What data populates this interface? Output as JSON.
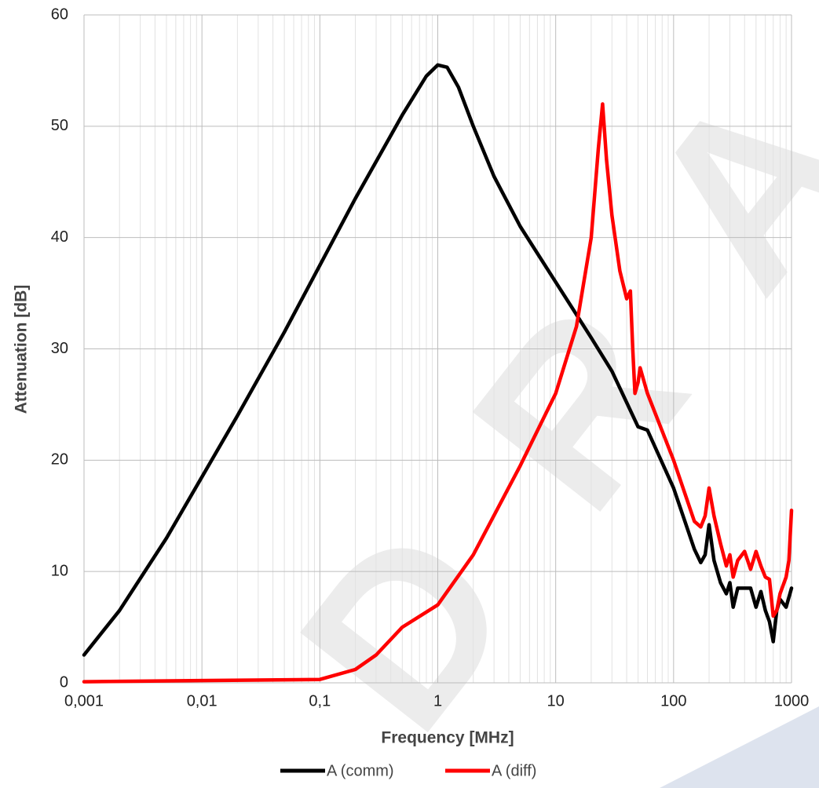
{
  "chart_data": {
    "type": "line",
    "xlabel": "Frequency [MHz]",
    "ylabel": "Attenuation [dB]",
    "watermark": "DRA",
    "xscale": "log",
    "grid": true,
    "minor_grid": true,
    "legend": "bottom",
    "xlim": [
      0.001,
      1000
    ],
    "ylim": [
      0,
      60
    ],
    "xticks": [
      {
        "value": 0.001,
        "label": "0,001"
      },
      {
        "value": 0.01,
        "label": "0,01"
      },
      {
        "value": 0.1,
        "label": "0,1"
      },
      1,
      10,
      100,
      1000
    ],
    "yticks": [
      0,
      10,
      20,
      30,
      40,
      50,
      60
    ],
    "series": [
      {
        "name": "A (comm)",
        "color": "#000000",
        "x": [
          0.001,
          0.002,
          0.005,
          0.01,
          0.02,
          0.05,
          0.1,
          0.2,
          0.5,
          0.8,
          1,
          1.2,
          1.5,
          2,
          3,
          5,
          10,
          20,
          30,
          50,
          60,
          100,
          150,
          170,
          185,
          200,
          220,
          250,
          280,
          300,
          320,
          350,
          400,
          450,
          500,
          550,
          600,
          650,
          700,
          750,
          800,
          900,
          1000
        ],
        "values": [
          2.5,
          6.5,
          13,
          18.5,
          24,
          31.5,
          37.5,
          43.5,
          51,
          54.5,
          55.5,
          55.3,
          53.5,
          50,
          45.5,
          41,
          36,
          31,
          28,
          23,
          22.7,
          17.5,
          12,
          10.8,
          11.5,
          14.2,
          11,
          9,
          8,
          9,
          6.8,
          8.5,
          8.5,
          8.5,
          6.8,
          8.2,
          6.5,
          5.5,
          3.7,
          6.5,
          7.5,
          6.8,
          8.5
        ]
      },
      {
        "name": "A (diff)",
        "color": "#ff0000",
        "x": [
          0.001,
          0.1,
          0.2,
          0.3,
          0.5,
          1,
          2,
          5,
          10,
          15,
          20,
          23,
          25,
          27,
          30,
          35,
          40,
          43,
          45,
          47,
          50,
          52,
          60,
          100,
          150,
          170,
          185,
          200,
          220,
          250,
          280,
          300,
          320,
          350,
          400,
          450,
          500,
          550,
          600,
          650,
          700,
          750,
          800,
          900,
          950,
          1000
        ],
        "values": [
          0.1,
          0.3,
          1.2,
          2.5,
          5,
          7,
          11.5,
          19.5,
          26,
          32,
          40,
          48,
          52,
          47,
          42,
          37,
          34.5,
          35.2,
          30,
          26,
          27,
          28.3,
          26,
          20,
          14.5,
          14,
          15,
          17.5,
          15,
          12.5,
          10.5,
          11.5,
          9.5,
          11,
          11.8,
          10.2,
          11.8,
          10.5,
          9.5,
          9.3,
          6,
          6.5,
          8,
          9.5,
          11,
          15.5
        ]
      }
    ]
  }
}
